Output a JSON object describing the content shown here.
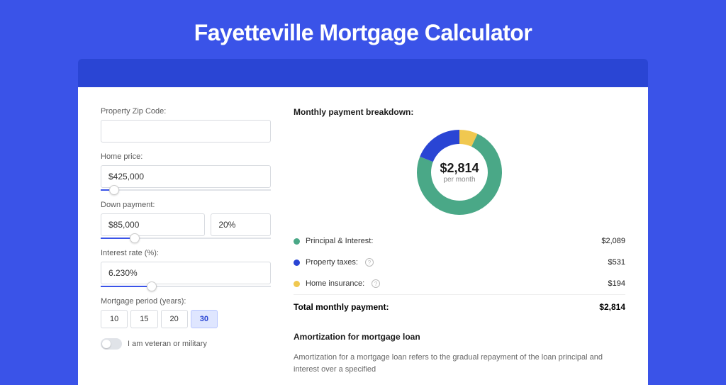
{
  "page": {
    "title": "Fayetteville Mortgage Calculator",
    "background_color": "#3a53e8",
    "header_bar_color": "#2a45d4",
    "card_color": "#ffffff"
  },
  "form": {
    "zip": {
      "label": "Property Zip Code:",
      "value": ""
    },
    "price": {
      "label": "Home price:",
      "value": "$425,000",
      "slider_pct": 8
    },
    "down": {
      "label": "Down payment:",
      "amount": "$85,000",
      "pct": "20%",
      "slider_pct": 20
    },
    "rate": {
      "label": "Interest rate (%):",
      "value": "6.230%",
      "slider_pct": 30
    },
    "period": {
      "label": "Mortgage period (years):",
      "options": [
        "10",
        "15",
        "20",
        "30"
      ],
      "selected": "30"
    },
    "veteran": {
      "label": "I am veteran or military",
      "checked": false
    }
  },
  "breakdown": {
    "title": "Monthly payment breakdown:",
    "donut": {
      "total": "$2,814",
      "subtitle": "per month",
      "slices": [
        {
          "label": "Principal & Interest:",
          "value": "$2,089",
          "color": "#4aa887",
          "pct": 74
        },
        {
          "label": "Property taxes:",
          "value": "$531",
          "color": "#2a45d4",
          "pct": 19,
          "help": true
        },
        {
          "label": "Home insurance:",
          "value": "$194",
          "color": "#f0c850",
          "pct": 7,
          "help": true
        }
      ]
    },
    "total_label": "Total monthly payment:",
    "total_value": "$2,814"
  },
  "amortization": {
    "title": "Amortization for mortgage loan",
    "text": "Amortization for a mortgage loan refers to the gradual repayment of the loan principal and interest over a specified"
  }
}
